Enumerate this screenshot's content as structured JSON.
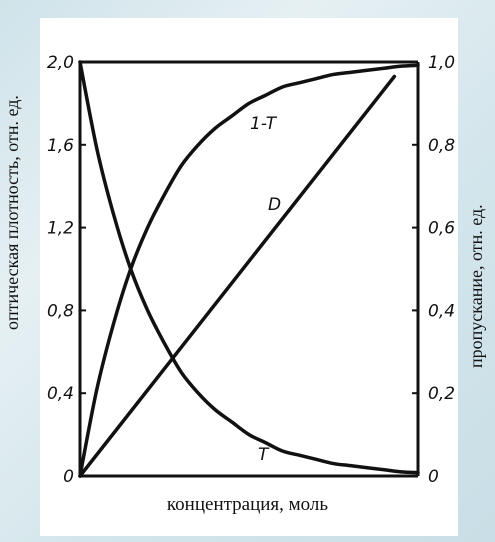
{
  "chart_data": {
    "type": "line",
    "xlabel": "концентрация, моль",
    "ylabel_left": "оптическая плотность, отн. ед.",
    "ylabel_right": "пропускание, отн. ед.",
    "ylim_left": [
      0,
      2.0
    ],
    "ylim_right": [
      0,
      1.0
    ],
    "left_ticks": [
      "0",
      "0,4",
      "0,8",
      "1,2",
      "1,6",
      "2,0"
    ],
    "right_ticks": [
      "0",
      "0,2",
      "0,4",
      "0,6",
      "0,8",
      "1,0"
    ],
    "grid": false,
    "series": [
      {
        "name": "T",
        "axis": "right",
        "x": [
          0,
          0.05,
          0.1,
          0.15,
          0.2,
          0.25,
          0.3,
          0.35,
          0.4,
          0.45,
          0.5,
          0.55,
          0.6,
          0.65,
          0.7,
          0.75,
          0.8,
          0.85,
          0.9,
          0.95,
          1.0
        ],
        "values": [
          1.0,
          0.79,
          0.63,
          0.5,
          0.4,
          0.32,
          0.25,
          0.2,
          0.16,
          0.13,
          0.1,
          0.08,
          0.06,
          0.05,
          0.04,
          0.03,
          0.025,
          0.02,
          0.015,
          0.01,
          0.008
        ]
      },
      {
        "name": "1-T",
        "axis": "right",
        "x": [
          0,
          0.05,
          0.1,
          0.15,
          0.2,
          0.25,
          0.3,
          0.35,
          0.4,
          0.45,
          0.5,
          0.55,
          0.6,
          0.65,
          0.7,
          0.75,
          0.8,
          0.85,
          0.9,
          0.95,
          1.0
        ],
        "values": [
          0.0,
          0.21,
          0.37,
          0.5,
          0.6,
          0.68,
          0.75,
          0.8,
          0.84,
          0.87,
          0.9,
          0.92,
          0.94,
          0.95,
          0.96,
          0.97,
          0.975,
          0.98,
          0.985,
          0.99,
          0.992
        ]
      },
      {
        "name": "D",
        "axis": "left",
        "x": [
          0,
          0.93
        ],
        "values": [
          0.0,
          1.93
        ]
      }
    ]
  }
}
